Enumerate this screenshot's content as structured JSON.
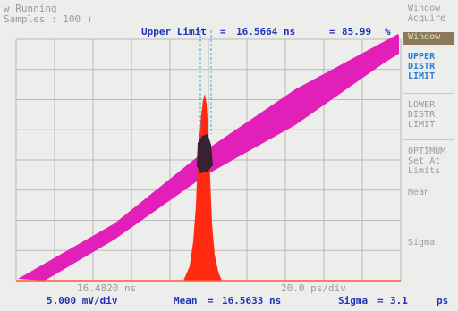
{
  "header": {
    "status_line1": "w Running",
    "status_line2": "Samples : 100 )",
    "upper_limit_label": "Upper Limit",
    "upper_limit_eq": "=",
    "upper_limit_value": "16.5664 ns",
    "percent_eq": "=",
    "percent_value": "85.99",
    "percent_unit": "%"
  },
  "menu": {
    "items": [
      {
        "label": "Window\nAcquire"
      },
      {
        "label": "Window"
      },
      {
        "label": "UPPER\nDISTR\nLIMIT"
      },
      {
        "label": "LOWER\nDISTR\nLIMIT"
      },
      {
        "label": "OPTIMUM\nSet At\nLimits"
      },
      {
        "label": "Mean"
      },
      {
        "label": "Sigma"
      }
    ]
  },
  "scale": {
    "left_time": "16.4820 ns",
    "time_per_div": "20.0 ps/div",
    "volt_per_div": "5.000 mV/div",
    "mean_label": "Mean",
    "mean_eq": "=",
    "mean_value": "16.5633 ns",
    "sigma_label": "Sigma",
    "sigma_eq": "=",
    "sigma_value": "3.1",
    "sigma_unit": "ps"
  },
  "colors": {
    "waveform": "#e21fb8",
    "histogram": "#ff2a10",
    "overlap": "#3a2030",
    "limit_line": "#4aa6d8",
    "grid": "#b9b9b5",
    "text_blue": "#1f34b8"
  }
}
